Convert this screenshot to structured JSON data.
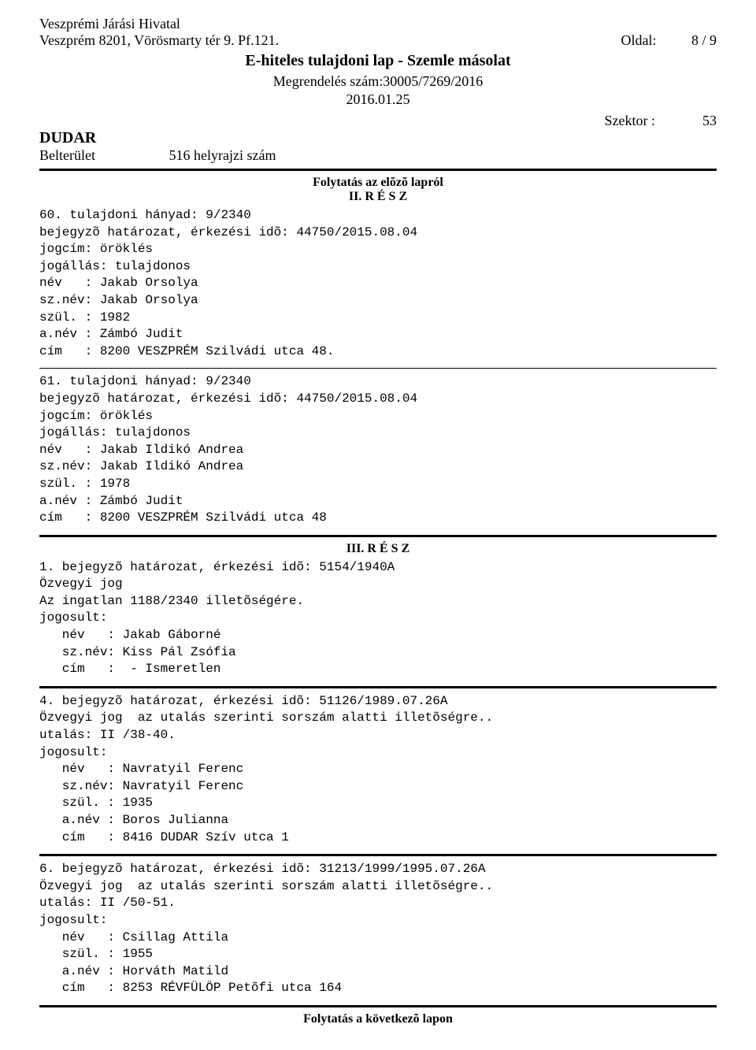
{
  "header": {
    "office": "Veszprémi Járási Hivatal",
    "address": "Veszprém 8201, Vörösmarty tér 9. Pf.121.",
    "page_label": "Oldal:",
    "page_num": "8 / 9",
    "doc_title": "E-hiteles tulajdoni lap - Szemle másolat",
    "order_num": "Megrendelés szám:30005/7269/2016",
    "date": "2016.01.25",
    "szektor_label": "Szektor :",
    "szektor_val": "53",
    "settlement": "DUDAR",
    "belterulet": "Belterület",
    "hrsz": "516 helyrajzi szám"
  },
  "continuation_prev": "Folytatás az elõzõ lapról",
  "resz2": "II. R É S Z",
  "entry60": "60. tulajdoni hányad: 9/2340\nbejegyzõ határozat, érkezési idõ: 44750/2015.08.04\njogcím: öröklés\njogállás: tulajdonos\nnév   : Jakab Orsolya\nsz.név: Jakab Orsolya\nszül. : 1982\na.név : Zámbó Judit\ncím   : 8200 VESZPRÉM Szilvádi utca 48.",
  "entry61": "61. tulajdoni hányad: 9/2340\nbejegyzõ határozat, érkezési idõ: 44750/2015.08.04\njogcím: öröklés\njogállás: tulajdonos\nnév   : Jakab Ildikó Andrea\nsz.név: Jakab Ildikó Andrea\nszül. : 1978\na.név : Zámbó Judit\ncím   : 8200 VESZPRÉM Szilvádi utca 48",
  "resz3": "III. R É S Z",
  "entry_iii_1": "1. bejegyzõ határozat, érkezési idõ: 5154/1940A\nÖzvegyi jog\nAz ingatlan 1188/2340 illetõségére.\njogosult:\n   név   : Jakab Gáborné\n   sz.név: Kiss Pál Zsófia\n   cím   :  - Ismeretlen",
  "entry_iii_4": "4. bejegyzõ határozat, érkezési idõ: 51126/1989.07.26A\nÖzvegyi jog  az utalás szerinti sorszám alatti illetõségre..\nutalás: II /38-40.\njogosult:\n   név   : Navratyil Ferenc\n   sz.név: Navratyil Ferenc\n   szül. : 1935\n   a.név : Boros Julianna\n   cím   : 8416 DUDAR Szív utca 1",
  "entry_iii_6": "6. bejegyzõ határozat, érkezési idõ: 31213/1999/1995.07.26A\nÖzvegyi jog  az utalás szerinti sorszám alatti illetõségre..\nutalás: II /50-51.\njogosult:\n   név   : Csillag Attila\n   szül. : 1955\n   a.név : Horváth Matild\n   cím   : 8253 RÉVFÜLÖP Petõfi utca 164",
  "continuation_next": "Folytatás a következõ lapon"
}
